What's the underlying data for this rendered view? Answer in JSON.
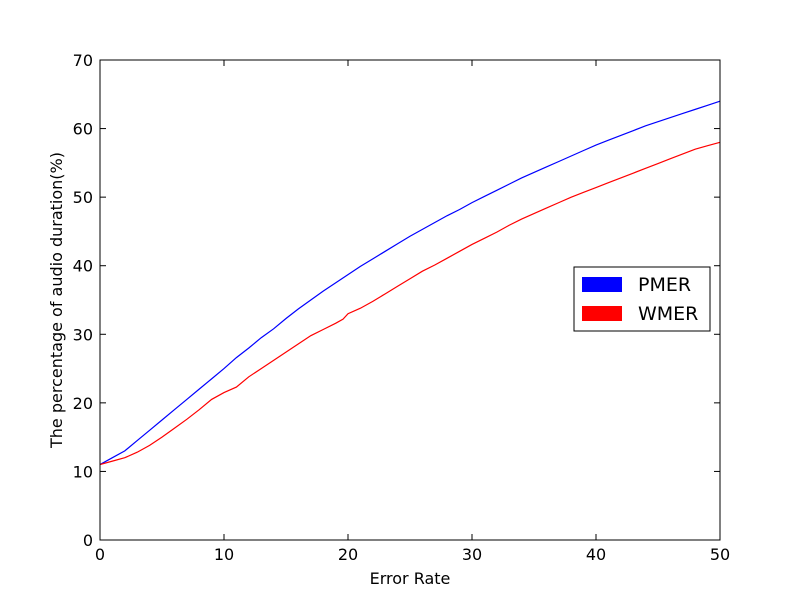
{
  "chart_data": {
    "type": "line",
    "title": "",
    "xlabel": "Error Rate",
    "ylabel": "The percentage of audio duration(%)",
    "xlim": [
      0,
      50
    ],
    "ylim": [
      0,
      70
    ],
    "xticks": [
      0,
      10,
      20,
      30,
      40,
      50
    ],
    "yticks": [
      0,
      10,
      20,
      30,
      40,
      50,
      60,
      70
    ],
    "grid": false,
    "legend_position": "center-right",
    "series": [
      {
        "name": "PMER",
        "color": "#0000ff",
        "x": [
          0,
          1,
          2,
          3,
          4,
          5,
          6,
          7,
          8,
          9,
          10,
          11,
          12,
          13,
          14,
          15,
          16,
          17,
          18,
          19,
          20,
          21,
          22,
          23,
          24,
          25,
          26,
          27,
          28,
          29,
          30,
          31,
          32,
          33,
          34,
          35,
          36,
          37,
          38,
          39,
          40,
          41,
          42,
          43,
          44,
          45,
          46,
          47,
          48,
          49,
          50
        ],
        "values": [
          11,
          12,
          13,
          14.5,
          16,
          17.5,
          19,
          20.5,
          22,
          23.5,
          25,
          26.6,
          28,
          29.5,
          30.8,
          32.3,
          33.7,
          35,
          36.3,
          37.5,
          38.7,
          39.9,
          41,
          42.1,
          43.2,
          44.3,
          45.3,
          46.3,
          47.3,
          48.2,
          49.2,
          50.1,
          51,
          51.9,
          52.8,
          53.6,
          54.4,
          55.2,
          56,
          56.8,
          57.6,
          58.3,
          59,
          59.7,
          60.4,
          61,
          61.6,
          62.2,
          62.8,
          63.4,
          64
        ]
      },
      {
        "name": "WMER",
        "color": "#ff0000",
        "x": [
          0,
          1,
          2,
          3,
          4,
          5,
          6,
          7,
          8,
          9,
          10,
          11,
          12,
          13,
          14,
          15,
          16,
          17,
          18,
          19,
          19.6,
          20,
          21,
          22,
          23,
          24,
          25,
          26,
          27,
          28,
          29,
          30,
          31,
          32,
          33,
          34,
          35,
          36,
          37,
          38,
          39,
          40,
          41,
          42,
          43,
          44,
          45,
          46,
          47,
          48,
          49,
          50
        ],
        "values": [
          11,
          11.5,
          12,
          12.8,
          13.8,
          15,
          16.3,
          17.6,
          19,
          20.5,
          21.5,
          22.3,
          23.8,
          25,
          26.2,
          27.4,
          28.6,
          29.8,
          30.7,
          31.6,
          32.2,
          33,
          33.8,
          34.8,
          35.9,
          37,
          38.1,
          39.2,
          40.1,
          41.1,
          42.1,
          43.1,
          44,
          44.9,
          45.9,
          46.8,
          47.6,
          48.4,
          49.2,
          50,
          50.7,
          51.4,
          52.1,
          52.8,
          53.5,
          54.2,
          54.9,
          55.6,
          56.3,
          57,
          57.5,
          58
        ]
      }
    ]
  }
}
